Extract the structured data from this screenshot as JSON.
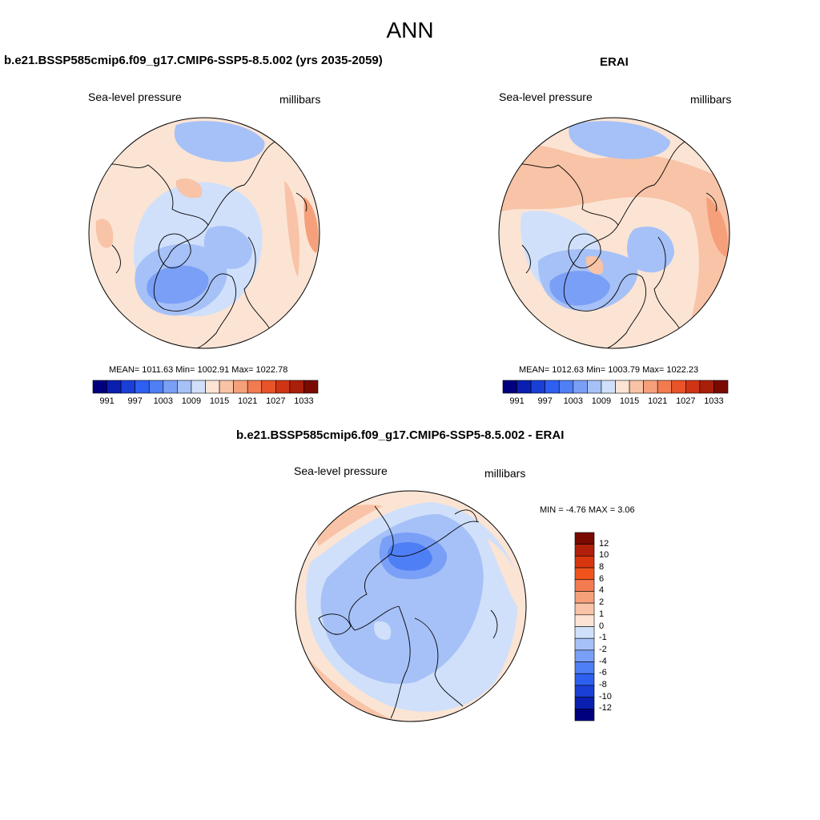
{
  "figure_title": "ANN",
  "palette": {
    "abs_colors": [
      "#00007f",
      "#0a1fb0",
      "#1a3fd6",
      "#2d5ff0",
      "#4f7ff5",
      "#7a9ff6",
      "#a6c1f7",
      "#d0e0fa",
      "#fbe4d4",
      "#f8c3a6",
      "#f5a07a",
      "#f27b50",
      "#e8532a",
      "#cf3514",
      "#a8200a",
      "#7a0a00"
    ],
    "abs_ticks": [
      "991",
      "997",
      "1003",
      "1009",
      "1015",
      "1021",
      "1027",
      "1033"
    ],
    "diff_colors": [
      "#00007f",
      "#0a1fb0",
      "#1a3fd6",
      "#2d5ff0",
      "#4f7ff5",
      "#7a9ff6",
      "#a6c1f7",
      "#d0e0fa",
      "#fbe4d4",
      "#f8c3a6",
      "#f5a07a",
      "#f27b50",
      "#f0541c",
      "#d8360e",
      "#b0200a",
      "#7a0a00"
    ],
    "diff_ticks": [
      "12",
      "10",
      "8",
      "6",
      "4",
      "2",
      "1",
      "0",
      "-1",
      "-2",
      "-4",
      "-6",
      "-8",
      "-10",
      "-12"
    ]
  },
  "panels": {
    "model": {
      "title": "b.e21.BSSP585cmip6.f09_g17.CMIP6-SSP5-8.5.002 (yrs 2035-2059)",
      "variable": "Sea-level pressure",
      "units": "millibars",
      "stats": "MEAN= 1011.63  Min= 1002.91  Max= 1022.78"
    },
    "obs": {
      "title": "ERAI",
      "variable": "Sea-level pressure",
      "units": "millibars",
      "stats": "MEAN= 1012.63  Min= 1003.79  Max= 1022.23"
    },
    "diff": {
      "title": "b.e21.BSSP585cmip6.f09_g17.CMIP6-SSP5-8.5.002 - ERAI",
      "variable": "Sea-level pressure",
      "units": "millibars",
      "stats": "MIN =  -4.76 MAX =   3.06"
    }
  }
}
